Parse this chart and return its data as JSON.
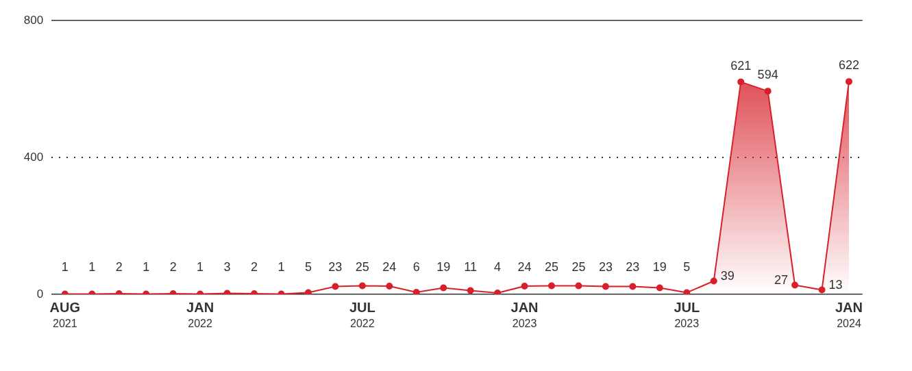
{
  "chart_data": {
    "type": "area",
    "categories": [
      "AUG 2021",
      null,
      null,
      null,
      null,
      "JAN 2022",
      null,
      null,
      null,
      null,
      null,
      "JUL 2022",
      null,
      null,
      null,
      null,
      null,
      "JAN 2023",
      null,
      null,
      null,
      null,
      null,
      "JUL 2023",
      null,
      null,
      null,
      null,
      null,
      "JAN 2024"
    ],
    "values": [
      1,
      1,
      2,
      1,
      2,
      1,
      3,
      2,
      1,
      5,
      23,
      25,
      24,
      6,
      19,
      11,
      4,
      24,
      25,
      25,
      23,
      23,
      19,
      5,
      39,
      621,
      594,
      27,
      13,
      622
    ],
    "color": "#d7202a",
    "ylim": [
      0,
      800
    ],
    "yticks": [
      0,
      400,
      800
    ],
    "grid": "y",
    "marker": "circle",
    "data_labels": true
  }
}
